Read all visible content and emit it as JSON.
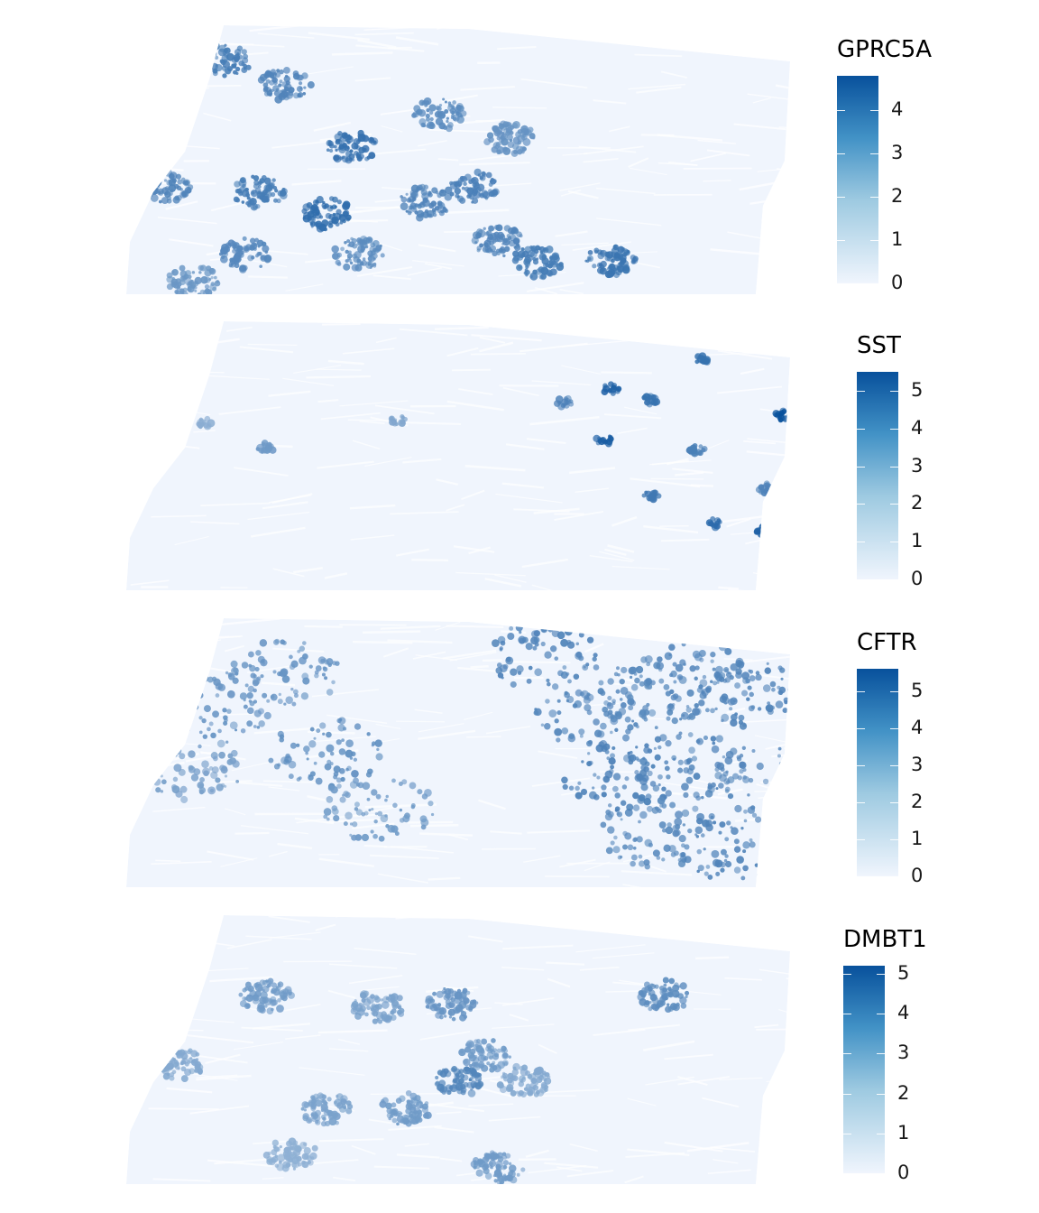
{
  "chart_data": [
    {
      "type": "heatmap",
      "gene": "GPRC5A",
      "legend_title": "GPRC5A",
      "color_scale": {
        "low": "#f0f5fd",
        "high": "#08519c"
      },
      "value_range": [
        0,
        4.8
      ],
      "ticks": [
        0,
        1,
        2,
        3,
        4
      ],
      "high_regions": [
        {
          "x": 0.15,
          "y": 0.13,
          "value": 3.2
        },
        {
          "x": 0.24,
          "y": 0.22,
          "value": 3.0
        },
        {
          "x": 0.34,
          "y": 0.45,
          "value": 3.5
        },
        {
          "x": 0.06,
          "y": 0.6,
          "value": 3.0
        },
        {
          "x": 0.2,
          "y": 0.62,
          "value": 3.2
        },
        {
          "x": 0.3,
          "y": 0.7,
          "value": 3.6
        },
        {
          "x": 0.45,
          "y": 0.66,
          "value": 3.0
        },
        {
          "x": 0.47,
          "y": 0.33,
          "value": 2.8
        },
        {
          "x": 0.52,
          "y": 0.6,
          "value": 3.1
        },
        {
          "x": 0.56,
          "y": 0.8,
          "value": 3.0
        },
        {
          "x": 0.62,
          "y": 0.88,
          "value": 3.2
        },
        {
          "x": 0.73,
          "y": 0.88,
          "value": 3.4
        },
        {
          "x": 0.58,
          "y": 0.42,
          "value": 2.6
        },
        {
          "x": 0.35,
          "y": 0.85,
          "value": 2.8
        },
        {
          "x": 0.1,
          "y": 0.95,
          "value": 2.5
        },
        {
          "x": 0.18,
          "y": 0.85,
          "value": 2.9
        }
      ]
    },
    {
      "type": "heatmap",
      "gene": "SST",
      "legend_title": "SST",
      "color_scale": {
        "low": "#f0f5fd",
        "high": "#08519c"
      },
      "value_range": [
        0,
        5.5
      ],
      "ticks": [
        0,
        1,
        2,
        3,
        4,
        5
      ],
      "high_regions": [
        {
          "x": 0.87,
          "y": 0.14,
          "value": 4.0
        },
        {
          "x": 0.73,
          "y": 0.25,
          "value": 4.5
        },
        {
          "x": 0.79,
          "y": 0.29,
          "value": 4.0
        },
        {
          "x": 0.66,
          "y": 0.3,
          "value": 3.5
        },
        {
          "x": 0.99,
          "y": 0.35,
          "value": 5.0
        },
        {
          "x": 0.72,
          "y": 0.44,
          "value": 4.6
        },
        {
          "x": 0.86,
          "y": 0.48,
          "value": 3.6
        },
        {
          "x": 0.96,
          "y": 0.62,
          "value": 3.5
        },
        {
          "x": 0.79,
          "y": 0.65,
          "value": 3.8
        },
        {
          "x": 0.89,
          "y": 0.75,
          "value": 4.2
        },
        {
          "x": 0.96,
          "y": 0.78,
          "value": 4.5
        },
        {
          "x": 0.21,
          "y": 0.47,
          "value": 2.8
        },
        {
          "x": 0.41,
          "y": 0.37,
          "value": 2.4
        },
        {
          "x": 0.12,
          "y": 0.38,
          "value": 2.2
        }
      ]
    },
    {
      "type": "heatmap",
      "gene": "CFTR",
      "legend_title": "CFTR",
      "color_scale": {
        "low": "#f0f5fd",
        "high": "#08519c"
      },
      "value_range": [
        0,
        5.6
      ],
      "ticks": [
        0,
        1,
        2,
        3,
        4,
        5
      ],
      "high_regions": [
        {
          "x": 0.63,
          "y": 0.14,
          "value": 3.5
        },
        {
          "x": 0.7,
          "y": 0.35,
          "value": 3.4
        },
        {
          "x": 0.79,
          "y": 0.28,
          "value": 3.3
        },
        {
          "x": 0.86,
          "y": 0.22,
          "value": 3.4
        },
        {
          "x": 0.95,
          "y": 0.28,
          "value": 3.5
        },
        {
          "x": 0.74,
          "y": 0.6,
          "value": 3.6
        },
        {
          "x": 0.85,
          "y": 0.55,
          "value": 3.5
        },
        {
          "x": 0.96,
          "y": 0.6,
          "value": 3.4
        },
        {
          "x": 0.8,
          "y": 0.8,
          "value": 3.3
        },
        {
          "x": 0.92,
          "y": 0.85,
          "value": 3.5
        },
        {
          "x": 0.14,
          "y": 0.32,
          "value": 3.0
        },
        {
          "x": 0.24,
          "y": 0.2,
          "value": 3.0
        },
        {
          "x": 0.3,
          "y": 0.5,
          "value": 3.2
        },
        {
          "x": 0.38,
          "y": 0.7,
          "value": 2.8
        },
        {
          "x": 0.1,
          "y": 0.55,
          "value": 2.6
        }
      ]
    },
    {
      "type": "heatmap",
      "gene": "DMBT1",
      "legend_title": "DMBT1",
      "color_scale": {
        "low": "#f0f5fd",
        "high": "#08519c"
      },
      "value_range": [
        0,
        5.2
      ],
      "ticks": [
        0,
        1,
        2,
        3,
        4,
        5
      ],
      "high_regions": [
        {
          "x": 0.21,
          "y": 0.3,
          "value": 2.6
        },
        {
          "x": 0.38,
          "y": 0.34,
          "value": 2.4
        },
        {
          "x": 0.49,
          "y": 0.33,
          "value": 2.8
        },
        {
          "x": 0.54,
          "y": 0.52,
          "value": 2.6
        },
        {
          "x": 0.5,
          "y": 0.62,
          "value": 3.2
        },
        {
          "x": 0.81,
          "y": 0.3,
          "value": 3.0
        },
        {
          "x": 0.3,
          "y": 0.72,
          "value": 2.4
        },
        {
          "x": 0.42,
          "y": 0.72,
          "value": 2.6
        },
        {
          "x": 0.08,
          "y": 0.55,
          "value": 2.2
        },
        {
          "x": 0.6,
          "y": 0.62,
          "value": 2.2
        },
        {
          "x": 0.56,
          "y": 0.94,
          "value": 2.6
        },
        {
          "x": 0.25,
          "y": 0.89,
          "value": 2.0
        }
      ]
    }
  ]
}
